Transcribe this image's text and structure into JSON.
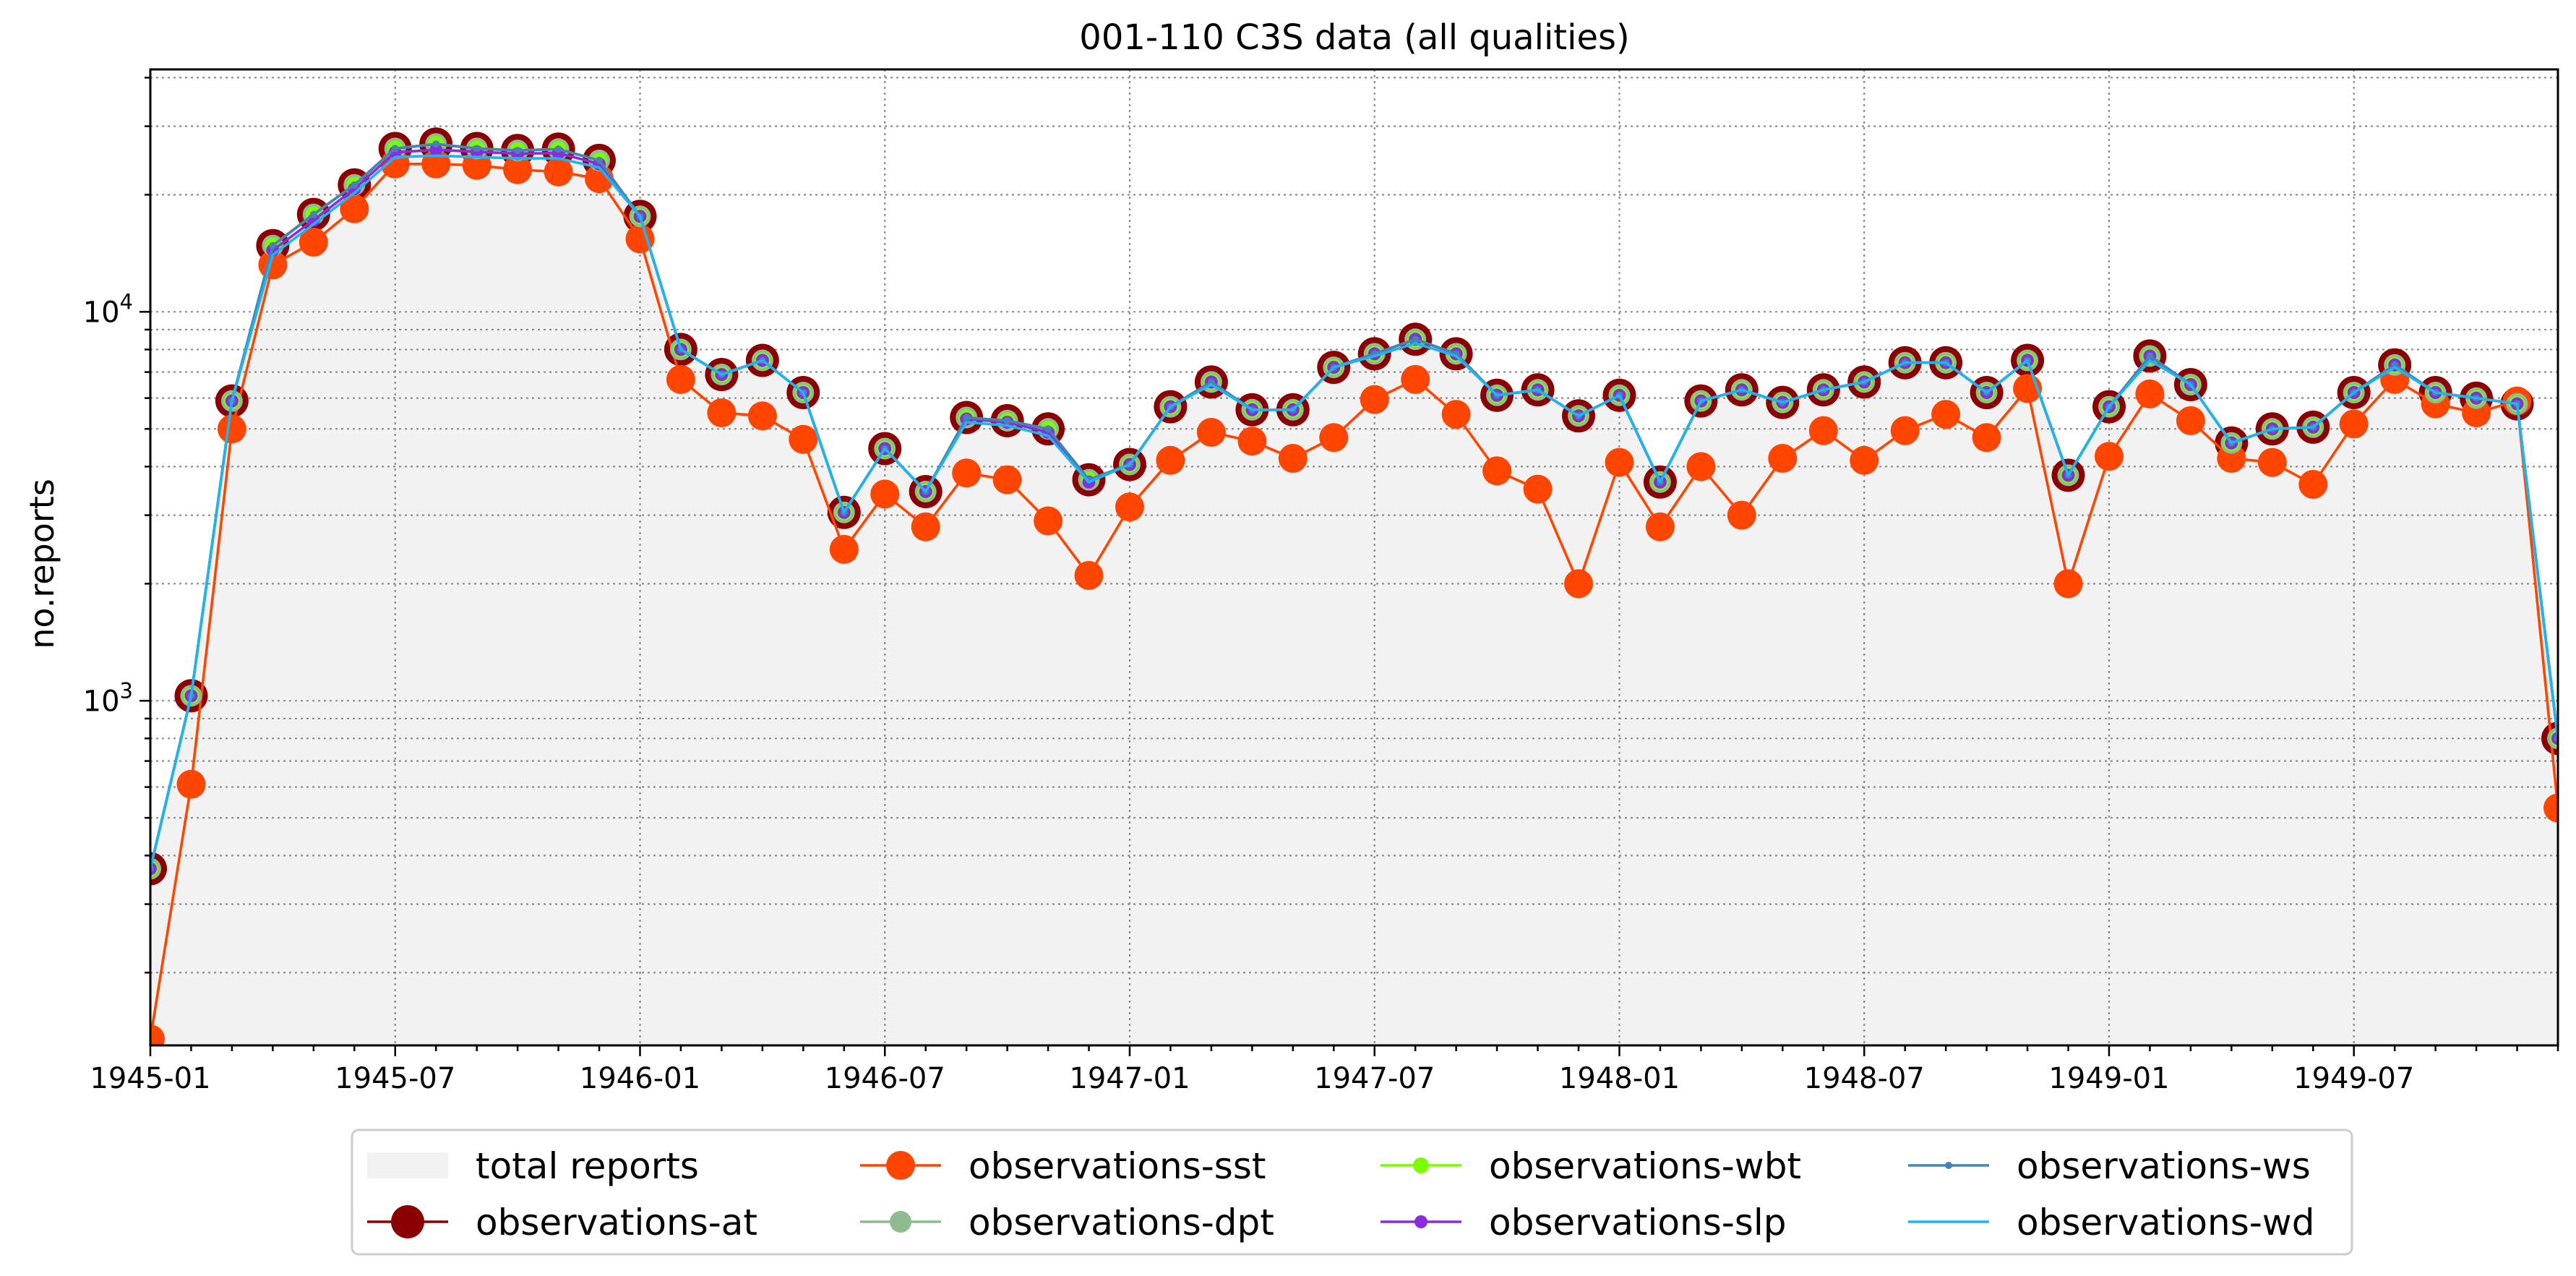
{
  "chart_data": {
    "type": "line",
    "title": "001-110 C3S data (all qualities)",
    "xlabel": "",
    "ylabel": "no.reports",
    "yscale": "log",
    "ylim": [
      130,
      42000
    ],
    "xlim": [
      "1945-01",
      "1949-12"
    ],
    "x_tick_labels": [
      "1945-01",
      "1945-07",
      "1946-01",
      "1946-07",
      "1947-01",
      "1947-07",
      "1948-01",
      "1948-07",
      "1949-01",
      "1949-07"
    ],
    "y_tick_labels": [
      {
        "base": "10",
        "exp": "3",
        "value": 1000
      },
      {
        "base": "10",
        "exp": "4",
        "value": 10000
      }
    ],
    "grid": true,
    "legend_position": "bottom",
    "x": [
      "1945-01",
      "1945-02",
      "1945-03",
      "1945-04",
      "1945-05",
      "1945-06",
      "1945-07",
      "1945-08",
      "1945-09",
      "1945-10",
      "1945-11",
      "1945-12",
      "1946-01",
      "1946-02",
      "1946-03",
      "1946-04",
      "1946-05",
      "1946-06",
      "1946-07",
      "1946-08",
      "1946-09",
      "1946-10",
      "1946-11",
      "1946-12",
      "1947-01",
      "1947-02",
      "1947-03",
      "1947-04",
      "1947-05",
      "1947-06",
      "1947-07",
      "1947-08",
      "1947-09",
      "1947-10",
      "1947-11",
      "1947-12",
      "1948-01",
      "1948-02",
      "1948-03",
      "1948-04",
      "1948-05",
      "1948-06",
      "1948-07",
      "1948-08",
      "1948-09",
      "1948-10",
      "1948-11",
      "1948-12",
      "1949-01",
      "1949-02",
      "1949-03",
      "1949-04",
      "1949-05",
      "1949-06",
      "1949-07",
      "1949-08",
      "1949-09",
      "1949-10",
      "1949-11",
      "1949-12"
    ],
    "series": [
      {
        "name": "total reports",
        "kind": "area",
        "color": "#f2f2f2",
        "values": [
          370,
          1030,
          5900,
          14800,
          17800,
          21200,
          26300,
          27000,
          26300,
          26000,
          26200,
          24500,
          17600,
          8000,
          6900,
          7500,
          6200,
          3050,
          4450,
          3450,
          5350,
          5250,
          5000,
          3700,
          4050,
          5700,
          6600,
          5600,
          5600,
          7200,
          7800,
          8500,
          7800,
          6100,
          6300,
          5400,
          6100,
          3650,
          5900,
          6300,
          5850,
          6300,
          6600,
          7400,
          7400,
          6200,
          7500,
          3800,
          5700,
          7700,
          6500,
          4600,
          5000,
          5050,
          6200,
          7300,
          6200,
          6000,
          5800,
          800
        ]
      },
      {
        "name": "observations-at",
        "kind": "line-marker",
        "color": "#8b0000",
        "marker_size": "large",
        "values": [
          370,
          1030,
          5900,
          14800,
          17800,
          21200,
          26300,
          27000,
          26300,
          26000,
          26200,
          24500,
          17600,
          8000,
          6900,
          7500,
          6200,
          3050,
          4450,
          3450,
          5350,
          5250,
          5000,
          3700,
          4050,
          5700,
          6600,
          5600,
          5600,
          7200,
          7800,
          8500,
          7800,
          6100,
          6300,
          5400,
          6100,
          3650,
          5900,
          6300,
          5850,
          6300,
          6600,
          7400,
          7400,
          6200,
          7500,
          3800,
          5700,
          7700,
          6500,
          4600,
          5000,
          5050,
          6200,
          7300,
          6200,
          6000,
          5800,
          800
        ]
      },
      {
        "name": "observations-sst",
        "kind": "line-marker",
        "color": "#ff4500",
        "marker_size": "medium",
        "values": [
          135,
          610,
          5000,
          13200,
          15100,
          18400,
          24000,
          24000,
          23800,
          23200,
          22900,
          22000,
          15400,
          6700,
          5500,
          5400,
          4700,
          2450,
          3400,
          2800,
          3850,
          3700,
          2900,
          2100,
          3150,
          4150,
          4900,
          4650,
          4200,
          4750,
          5950,
          6700,
          5450,
          3900,
          3500,
          2000,
          4100,
          2800,
          4000,
          3000,
          4200,
          4950,
          4150,
          4950,
          5450,
          4750,
          6350,
          2000,
          4250,
          6150,
          5250,
          4200,
          4100,
          3600,
          5150,
          6700,
          5800,
          5500,
          5900,
          530
        ]
      },
      {
        "name": "observations-dpt",
        "kind": "line-marker",
        "color": "#8fbc8f",
        "marker_size": "medium-small",
        "values": [
          370,
          1030,
          5900,
          14800,
          17800,
          21200,
          26300,
          27000,
          26300,
          26000,
          26200,
          24500,
          17600,
          8000,
          6900,
          7500,
          6200,
          3050,
          4450,
          3450,
          5350,
          5250,
          5000,
          3700,
          4050,
          5700,
          6600,
          5600,
          5600,
          7200,
          7800,
          8500,
          7800,
          6100,
          6300,
          5400,
          6100,
          3650,
          5900,
          6300,
          5850,
          6300,
          6600,
          7400,
          7400,
          6200,
          7500,
          3800,
          5700,
          7700,
          6500,
          4600,
          5000,
          5050,
          6200,
          7300,
          6200,
          6000,
          5800,
          800
        ]
      },
      {
        "name": "observations-wbt",
        "kind": "line-marker",
        "color": "#7cfc00",
        "marker_size": "small",
        "values": [
          370,
          1030,
          5900,
          14800,
          17800,
          21200,
          26300,
          27000,
          26300,
          26000,
          26200,
          24500,
          17600,
          8000,
          6900,
          7500,
          6200,
          3050,
          4450,
          3450,
          5350,
          5250,
          5000,
          3700,
          4050,
          5700,
          6600,
          5600,
          5600,
          7200,
          7800,
          8500,
          7800,
          6100,
          6300,
          5400,
          6100,
          3650,
          5900,
          6300,
          5850,
          6300,
          6600,
          7400,
          7400,
          6200,
          7500,
          3800,
          5700,
          7700,
          6500,
          4600,
          5000,
          5050,
          6200,
          7300,
          6200,
          6000,
          5800,
          800
        ]
      },
      {
        "name": "observations-slp",
        "kind": "line-marker",
        "color": "#8a2be2",
        "marker_size": "smaller",
        "values": [
          370,
          1030,
          5900,
          14400,
          17200,
          20700,
          25700,
          26100,
          25800,
          25500,
          25600,
          24000,
          17600,
          8000,
          6900,
          7500,
          6200,
          3050,
          4450,
          3450,
          5300,
          5200,
          4900,
          3650,
          4050,
          5700,
          6600,
          5600,
          5600,
          7200,
          7800,
          8500,
          7800,
          6100,
          6300,
          5400,
          6100,
          3650,
          5900,
          6300,
          5850,
          6300,
          6600,
          7400,
          7400,
          6200,
          7500,
          3800,
          5700,
          7700,
          6500,
          4600,
          5000,
          5050,
          6200,
          7300,
          6200,
          6000,
          5800,
          800
        ]
      },
      {
        "name": "observations-ws",
        "kind": "line-marker",
        "color": "#4682b4",
        "marker_size": "tiny",
        "values": [
          370,
          1030,
          5900,
          14800,
          17800,
          21200,
          26300,
          27000,
          26300,
          26000,
          26200,
          24500,
          17600,
          8000,
          6900,
          7500,
          6200,
          3050,
          4450,
          3450,
          5350,
          5250,
          5000,
          3700,
          4050,
          5700,
          6600,
          5600,
          5600,
          7200,
          7800,
          8500,
          7800,
          6100,
          6300,
          5400,
          6100,
          3650,
          5900,
          6300,
          5850,
          6300,
          6600,
          7400,
          7400,
          6200,
          7500,
          3800,
          5700,
          7700,
          6500,
          4600,
          5000,
          5050,
          6200,
          7300,
          6200,
          6000,
          5800,
          800
        ]
      },
      {
        "name": "observations-wd",
        "kind": "line",
        "color": "#1eb4f0",
        "values": [
          370,
          1030,
          5900,
          14000,
          16800,
          20200,
          25000,
          25200,
          25000,
          24800,
          24800,
          23500,
          17600,
          8000,
          6900,
          7500,
          6200,
          3050,
          4450,
          3450,
          5200,
          5100,
          4800,
          3650,
          4050,
          5700,
          6500,
          5600,
          5600,
          7200,
          7700,
          8300,
          7700,
          6100,
          6300,
          5400,
          6100,
          3650,
          5900,
          6300,
          5850,
          6300,
          6600,
          7400,
          7400,
          6200,
          7500,
          3800,
          5700,
          7500,
          6500,
          4600,
          5000,
          5050,
          6200,
          7200,
          6200,
          6000,
          5800,
          800
        ]
      }
    ]
  }
}
